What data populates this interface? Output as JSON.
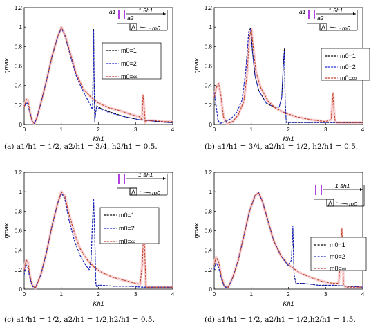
{
  "chart_data": [
    {
      "type": "line",
      "caption": "(a) a1/h1 = 1/2, a2/h1 = 3/4, h2/h1 = 0.5.",
      "xlabel": "Kh1",
      "ylabel": "ηmax",
      "xlim": [
        0,
        4
      ],
      "ylim": [
        0,
        1.2
      ],
      "xticks": [
        "0",
        "1",
        "2",
        "3",
        "4"
      ],
      "yticks": [
        "0",
        "0.2",
        "0.4",
        "0.6",
        "0.8",
        "1",
        "1.2"
      ],
      "legend": [
        "m0=1",
        "m0=2",
        "m0=∞"
      ],
      "inset": {
        "dim": "1.5h1",
        "labels": [
          "a1",
          "a2"
        ],
        "body": "m0"
      },
      "series": [
        {
          "name": "m0=1",
          "color": "#000000",
          "x": [
            0,
            0.08,
            0.16,
            0.22,
            0.28,
            0.35,
            0.45,
            0.6,
            0.75,
            0.9,
            1.0,
            1.1,
            1.25,
            1.4,
            1.55,
            1.7,
            1.78,
            1.82,
            1.84,
            1.855,
            1.87,
            1.885,
            1.9,
            1.92,
            1.95,
            2.05,
            2.3,
            2.7,
            3.1,
            3.4,
            3.6,
            3.9,
            4
          ],
          "y": [
            0.19,
            0.22,
            0.12,
            0.03,
            0.01,
            0.08,
            0.22,
            0.45,
            0.7,
            0.9,
            0.99,
            0.91,
            0.7,
            0.5,
            0.37,
            0.26,
            0.2,
            0.17,
            0.16,
            0.55,
            0.98,
            0.4,
            0.03,
            0.11,
            0.19,
            0.17,
            0.13,
            0.08,
            0.05,
            0.04,
            0.03,
            0.02,
            0.02
          ]
        },
        {
          "name": "m0=2",
          "color": "#1f2bd6",
          "x": [
            0,
            0.08,
            0.16,
            0.22,
            0.28,
            0.35,
            0.45,
            0.6,
            0.75,
            0.9,
            1.0,
            1.1,
            1.25,
            1.4,
            1.55,
            1.7,
            1.78,
            1.82,
            1.84,
            1.855,
            1.87,
            1.885,
            1.9,
            1.92,
            1.95,
            2.05,
            2.3,
            2.7,
            3.1,
            3.4,
            3.6,
            3.9,
            4
          ],
          "y": [
            0.19,
            0.22,
            0.12,
            0.03,
            0.01,
            0.08,
            0.22,
            0.45,
            0.7,
            0.9,
            0.99,
            0.91,
            0.7,
            0.5,
            0.37,
            0.26,
            0.2,
            0.17,
            0.16,
            0.55,
            0.96,
            0.4,
            0.03,
            0.1,
            0.18,
            0.16,
            0.12,
            0.08,
            0.05,
            0.04,
            0.03,
            0.02,
            0.02
          ]
        },
        {
          "name": "m0=∞",
          "color": "#c0402a",
          "x": [
            0,
            0.06,
            0.1,
            0.16,
            0.22,
            0.28,
            0.35,
            0.45,
            0.6,
            0.75,
            0.9,
            1.0,
            1.1,
            1.25,
            1.4,
            1.6,
            1.8,
            2.0,
            2.3,
            2.6,
            2.9,
            3.1,
            3.17,
            3.2,
            3.23,
            3.26,
            3.3,
            3.5,
            3.8,
            4
          ],
          "y": [
            0.18,
            0.26,
            0.25,
            0.12,
            0.03,
            0.01,
            0.08,
            0.22,
            0.45,
            0.7,
            0.9,
            1.0,
            0.92,
            0.72,
            0.52,
            0.36,
            0.28,
            0.22,
            0.17,
            0.14,
            0.1,
            0.08,
            0.05,
            0.3,
            0.18,
            0.02,
            0.04,
            0.04,
            0.03,
            0.03
          ]
        }
      ]
    },
    {
      "type": "line",
      "caption": "(b) a1/h1 = 3/4, a2/h1 = 1/2, h2/h1 = 0.5.",
      "xlabel": "Kh1",
      "ylabel": "ηmax",
      "xlim": [
        0,
        4
      ],
      "ylim": [
        0,
        1.2
      ],
      "xticks": [
        "0",
        "1",
        "2",
        "3",
        "4"
      ],
      "yticks": [
        "0",
        "0.2",
        "0.4",
        "0.6",
        "0.8",
        "1",
        "1.2"
      ],
      "legend": [
        "m0=1",
        "m0=2",
        "m0=∞"
      ],
      "inset": {
        "dim": "1.5h1",
        "labels": [
          "a1",
          "a2"
        ],
        "body": "m0"
      },
      "series": [
        {
          "name": "m0=1",
          "color": "#000000",
          "x": [
            0,
            0.05,
            0.1,
            0.15,
            0.22,
            0.3,
            0.45,
            0.6,
            0.75,
            0.85,
            0.93,
            0.98,
            1.03,
            1.1,
            1.2,
            1.4,
            1.6,
            1.75,
            1.82,
            1.86,
            1.89,
            1.91,
            1.94,
            2.0,
            2.2,
            2.6,
            3.0,
            3.4,
            3.8,
            4
          ],
          "y": [
            0.33,
            0.2,
            0.05,
            0.01,
            0.02,
            0.03,
            0.06,
            0.12,
            0.25,
            0.55,
            0.95,
            0.99,
            0.75,
            0.5,
            0.35,
            0.22,
            0.18,
            0.18,
            0.28,
            0.6,
            0.78,
            0.25,
            0.02,
            0.02,
            0.02,
            0.02,
            0.02,
            0.02,
            0.02,
            0.02
          ]
        },
        {
          "name": "m0=2",
          "color": "#1f2bd6",
          "x": [
            0,
            0.05,
            0.1,
            0.15,
            0.22,
            0.3,
            0.45,
            0.6,
            0.75,
            0.85,
            0.93,
            0.98,
            1.03,
            1.1,
            1.2,
            1.4,
            1.6,
            1.75,
            1.82,
            1.86,
            1.89,
            1.91,
            1.94,
            2.0,
            2.2,
            2.6,
            3.0,
            3.4,
            3.8,
            4
          ],
          "y": [
            0.33,
            0.2,
            0.05,
            0.01,
            0.02,
            0.03,
            0.06,
            0.12,
            0.25,
            0.55,
            0.95,
            0.98,
            0.75,
            0.5,
            0.35,
            0.22,
            0.18,
            0.18,
            0.28,
            0.6,
            0.76,
            0.25,
            0.02,
            0.02,
            0.02,
            0.02,
            0.02,
            0.02,
            0.02,
            0.02
          ]
        },
        {
          "name": "m0=∞",
          "color": "#c0402a",
          "x": [
            0,
            0.06,
            0.12,
            0.18,
            0.25,
            0.35,
            0.5,
            0.65,
            0.8,
            0.88,
            0.95,
            1.0,
            1.05,
            1.12,
            1.25,
            1.45,
            1.65,
            1.9,
            2.2,
            2.6,
            3.0,
            3.15,
            3.2,
            3.23,
            3.26,
            3.3,
            3.5,
            3.8,
            4
          ],
          "y": [
            0.28,
            0.38,
            0.42,
            0.3,
            0.08,
            0.01,
            0.03,
            0.1,
            0.24,
            0.5,
            0.9,
            0.98,
            0.8,
            0.55,
            0.38,
            0.24,
            0.17,
            0.12,
            0.08,
            0.05,
            0.03,
            0.05,
            0.32,
            0.12,
            0.03,
            0.02,
            0.02,
            0.02,
            0.02
          ]
        }
      ]
    },
    {
      "type": "line",
      "caption": "(c) a1/h1 = 1/2, a2/h1 = 1/2,h2/h1 = 0.5.",
      "xlabel": "Kh1",
      "ylabel": "ηmax",
      "xlim": [
        0,
        4
      ],
      "ylim": [
        0,
        1.2
      ],
      "xticks": [
        "0",
        "1",
        "2",
        "3",
        "4"
      ],
      "yticks": [
        "0",
        "0.2",
        "0.4",
        "0.6",
        "0.8",
        "1",
        "1.2"
      ],
      "legend": [
        "m0=1",
        "m0=2",
        "m0=∞"
      ],
      "inset": {
        "dim": "1.5h1",
        "labels": [],
        "body": "m0"
      },
      "series": [
        {
          "name": "m0=1",
          "color": "#000000",
          "x": [
            0,
            0.05,
            0.1,
            0.15,
            0.22,
            0.3,
            0.45,
            0.6,
            0.75,
            0.9,
            1.0,
            1.1,
            1.2,
            1.35,
            1.5,
            1.65,
            1.75,
            1.8,
            1.84,
            1.87,
            1.9,
            1.93,
            1.96,
            2.0,
            2.1,
            2.4,
            2.8,
            3.2,
            3.6,
            4
          ],
          "y": [
            0.15,
            0.25,
            0.22,
            0.12,
            0.03,
            0.01,
            0.15,
            0.38,
            0.65,
            0.88,
            0.99,
            0.92,
            0.72,
            0.5,
            0.35,
            0.25,
            0.2,
            0.3,
            0.7,
            0.88,
            0.55,
            0.05,
            0.02,
            0.04,
            0.04,
            0.03,
            0.03,
            0.02,
            0.02,
            0.02
          ]
        },
        {
          "name": "m0=2",
          "color": "#1f2bd6",
          "x": [
            0,
            0.05,
            0.1,
            0.15,
            0.22,
            0.3,
            0.45,
            0.6,
            0.75,
            0.9,
            1.0,
            1.1,
            1.2,
            1.35,
            1.5,
            1.65,
            1.75,
            1.8,
            1.84,
            1.87,
            1.9,
            1.93,
            1.96,
            2.0,
            2.1,
            2.4,
            2.8,
            3.2,
            3.6,
            4
          ],
          "y": [
            0.15,
            0.25,
            0.22,
            0.12,
            0.03,
            0.01,
            0.15,
            0.38,
            0.65,
            0.88,
            0.99,
            0.92,
            0.72,
            0.5,
            0.35,
            0.25,
            0.2,
            0.3,
            0.72,
            0.93,
            0.55,
            0.05,
            0.02,
            0.04,
            0.04,
            0.03,
            0.03,
            0.02,
            0.02,
            0.02
          ]
        },
        {
          "name": "m0=∞",
          "color": "#c0402a",
          "x": [
            0,
            0.05,
            0.1,
            0.15,
            0.22,
            0.3,
            0.45,
            0.6,
            0.75,
            0.9,
            1.0,
            1.1,
            1.2,
            1.35,
            1.5,
            1.7,
            1.9,
            2.1,
            2.4,
            2.7,
            3.0,
            3.12,
            3.18,
            3.22,
            3.25,
            3.28,
            3.35,
            3.6,
            4
          ],
          "y": [
            0.2,
            0.3,
            0.28,
            0.15,
            0.04,
            0.01,
            0.15,
            0.38,
            0.65,
            0.88,
            1.0,
            0.95,
            0.78,
            0.58,
            0.42,
            0.3,
            0.22,
            0.17,
            0.12,
            0.09,
            0.06,
            0.05,
            0.25,
            0.62,
            0.35,
            0.02,
            0.02,
            0.02,
            0.02
          ]
        }
      ]
    },
    {
      "type": "line",
      "caption": "(d) a1/h1 = 1/2, a2/h1 = 1/2,h2/h1 = 1.5.",
      "xlabel": "Kh1",
      "ylabel": "ηmax",
      "xlim": [
        0,
        4
      ],
      "ylim": [
        0,
        1.2
      ],
      "xticks": [
        "0",
        "1",
        "2",
        "3",
        "4"
      ],
      "yticks": [
        "0",
        "0.2",
        "0.4",
        "0.6",
        "0.8",
        "1",
        "1.2"
      ],
      "legend": [
        "m0=1",
        "m0=2",
        "m0=∞"
      ],
      "inset": {
        "dim": "1.5h1",
        "labels": [],
        "body": "m0"
      },
      "series": [
        {
          "name": "m0=1",
          "color": "#000000",
          "x": [
            0,
            0.05,
            0.12,
            0.2,
            0.28,
            0.38,
            0.5,
            0.65,
            0.8,
            0.95,
            1.1,
            1.2,
            1.3,
            1.45,
            1.6,
            1.8,
            2.0,
            2.08,
            2.12,
            2.15,
            2.2,
            2.4,
            2.8,
            3.2,
            3.6,
            4
          ],
          "y": [
            0.2,
            0.28,
            0.22,
            0.1,
            0.02,
            0.02,
            0.12,
            0.3,
            0.55,
            0.8,
            0.96,
            0.99,
            0.9,
            0.7,
            0.5,
            0.34,
            0.24,
            0.3,
            0.62,
            0.15,
            0.06,
            0.06,
            0.04,
            0.04,
            0.03,
            0.02
          ]
        },
        {
          "name": "m0=2",
          "color": "#1f2bd6",
          "x": [
            0,
            0.05,
            0.12,
            0.2,
            0.28,
            0.38,
            0.5,
            0.65,
            0.8,
            0.95,
            1.1,
            1.2,
            1.3,
            1.45,
            1.6,
            1.8,
            2.0,
            2.08,
            2.12,
            2.15,
            2.2,
            2.4,
            2.8,
            3.2,
            3.6,
            4
          ],
          "y": [
            0.2,
            0.28,
            0.22,
            0.1,
            0.02,
            0.02,
            0.12,
            0.3,
            0.55,
            0.8,
            0.96,
            0.99,
            0.9,
            0.7,
            0.5,
            0.34,
            0.24,
            0.3,
            0.65,
            0.15,
            0.06,
            0.06,
            0.04,
            0.04,
            0.03,
            0.02
          ]
        },
        {
          "name": "m0=∞",
          "color": "#c0402a",
          "x": [
            0,
            0.05,
            0.12,
            0.2,
            0.28,
            0.38,
            0.5,
            0.65,
            0.8,
            0.95,
            1.1,
            1.2,
            1.3,
            1.45,
            1.6,
            1.8,
            2.0,
            2.3,
            2.6,
            2.9,
            3.2,
            3.35,
            3.4,
            3.44,
            3.48,
            3.55,
            3.8,
            4
          ],
          "y": [
            0.25,
            0.33,
            0.28,
            0.12,
            0.03,
            0.02,
            0.12,
            0.3,
            0.55,
            0.8,
            0.96,
            0.99,
            0.9,
            0.7,
            0.5,
            0.34,
            0.25,
            0.17,
            0.12,
            0.08,
            0.06,
            0.06,
            0.3,
            0.62,
            0.04,
            0.02,
            0.02,
            0.02
          ]
        }
      ]
    }
  ]
}
